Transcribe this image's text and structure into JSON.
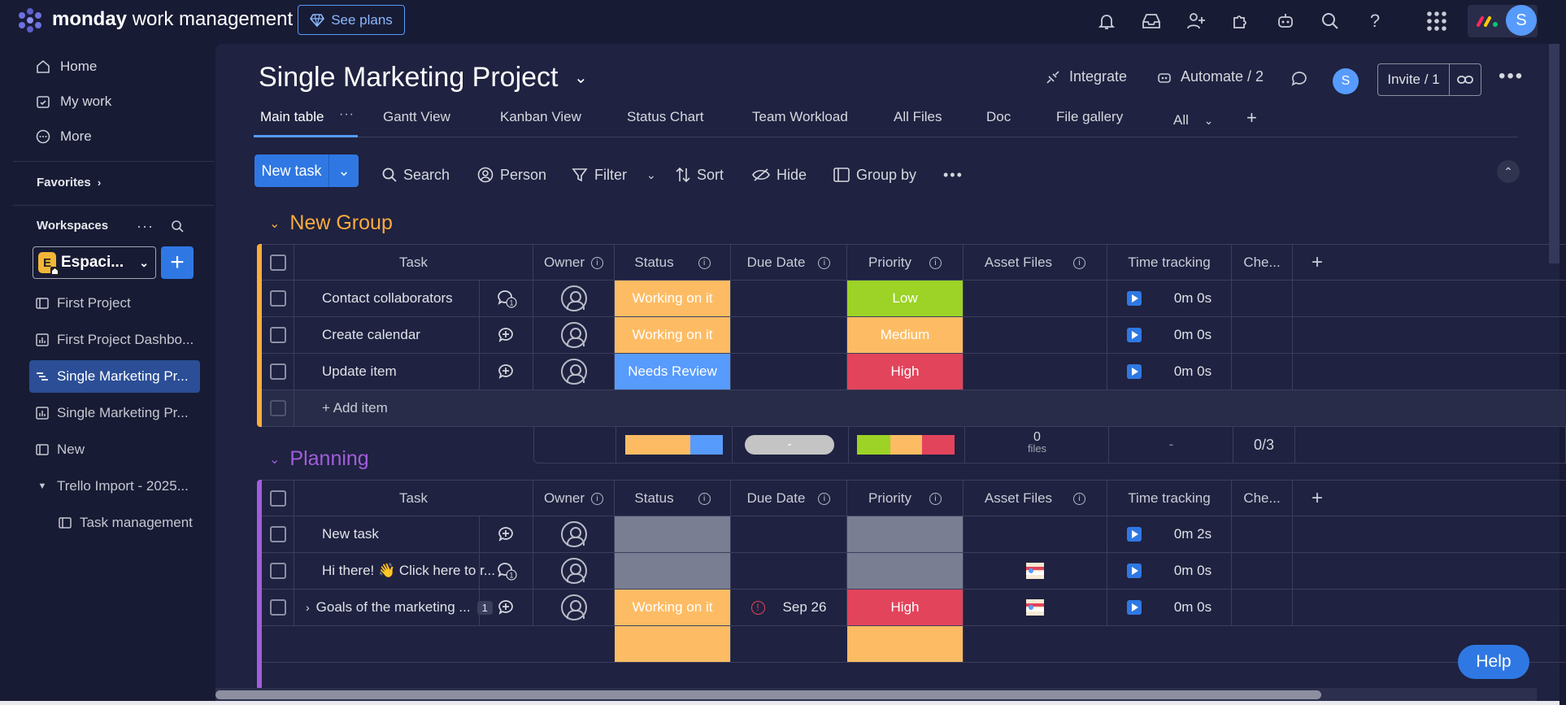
{
  "topbar": {
    "brand_bold": "monday",
    "brand_rest": "work management",
    "see_plans": "See plans",
    "avatar_initial": "S"
  },
  "sidebar": {
    "nav": [
      {
        "label": "Home",
        "icon": "home-icon"
      },
      {
        "label": "My work",
        "icon": "calendar-check-icon"
      },
      {
        "label": "More",
        "icon": "more-circle-icon"
      }
    ],
    "favorites_label": "Favorites",
    "workspaces_label": "Workspaces",
    "workspace_badge": "E",
    "workspace_name": "Espaci...",
    "boards": [
      {
        "label": "First Project",
        "icon": "board-icon",
        "active": false
      },
      {
        "label": "First Project Dashbo...",
        "icon": "dashboard-icon",
        "active": false
      },
      {
        "label": "Single Marketing Pr...",
        "icon": "gantt-board-icon",
        "active": true
      },
      {
        "label": "Single Marketing Pr...",
        "icon": "dashboard-icon",
        "active": false
      },
      {
        "label": "New",
        "icon": "board-icon",
        "active": false
      },
      {
        "label": "Trello Import - 2025...",
        "icon": "folder-caret-icon",
        "active": false
      },
      {
        "label": "Task management",
        "icon": "board-icon",
        "active": false
      }
    ]
  },
  "board": {
    "title": "Single Marketing Project",
    "integrate": "Integrate",
    "automate": "Automate / 2",
    "avatar_initial": "S",
    "invite": "Invite / 1",
    "tabs": [
      "Main table",
      "Gantt View",
      "Kanban View",
      "Status Chart",
      "Team Workload",
      "All Files",
      "Doc",
      "File gallery",
      "All"
    ],
    "toolbar": {
      "new_task": "New task",
      "search": "Search",
      "person": "Person",
      "filter": "Filter",
      "sort": "Sort",
      "hide": "Hide",
      "group_by": "Group by"
    },
    "columns": [
      "Task",
      "Owner",
      "Status",
      "Due Date",
      "Priority",
      "Asset Files",
      "Time tracking",
      "Che..."
    ]
  },
  "groups": [
    {
      "name": "New Group",
      "color": "#fdab3d",
      "rows": [
        {
          "task": "Contact collaborators",
          "update": "chat-badge",
          "status": "Working on it",
          "status_color": "#fdbc64",
          "due": "",
          "priority": "Low",
          "priority_color": "#9cd326",
          "files": "",
          "time": "0m 0s"
        },
        {
          "task": "Create calendar",
          "update": "add-update",
          "status": "Working on it",
          "status_color": "#fdbc64",
          "due": "",
          "priority": "Medium",
          "priority_color": "#fdbc64",
          "files": "",
          "time": "0m 0s"
        },
        {
          "task": "Update item",
          "update": "add-update",
          "status": "Needs Review",
          "status_color": "#579bfc",
          "due": "",
          "priority": "High",
          "priority_color": "#e2445c",
          "files": "",
          "time": "0m 0s"
        }
      ],
      "add_item": "+ Add item",
      "summary": {
        "due": "-",
        "files_count": "0",
        "files_label": "files",
        "time": "-",
        "check": "0/3"
      }
    },
    {
      "name": "Planning",
      "color": "#a25ddc",
      "rows": [
        {
          "task": "New task",
          "update": "add-update",
          "status": "",
          "status_color": "#797e93",
          "due": "",
          "priority": "",
          "priority_color": "#797e93",
          "files": "",
          "time": "0m 2s"
        },
        {
          "task": "Hi there! 👋 Click here to r...",
          "update": "chat-badge",
          "status": "",
          "status_color": "#797e93",
          "due": "",
          "priority": "",
          "priority_color": "#797e93",
          "files": "file-thumb",
          "time": "0m 0s"
        },
        {
          "task": "Goals of the marketing ...",
          "update": "add-update",
          "subitems": "1",
          "status": "Working on it",
          "status_color": "#fdbc64",
          "due": "Sep 26",
          "priority": "High",
          "priority_color": "#e2445c",
          "files": "file-thumb",
          "time": "0m 0s"
        }
      ]
    }
  ],
  "help_label": "Help"
}
